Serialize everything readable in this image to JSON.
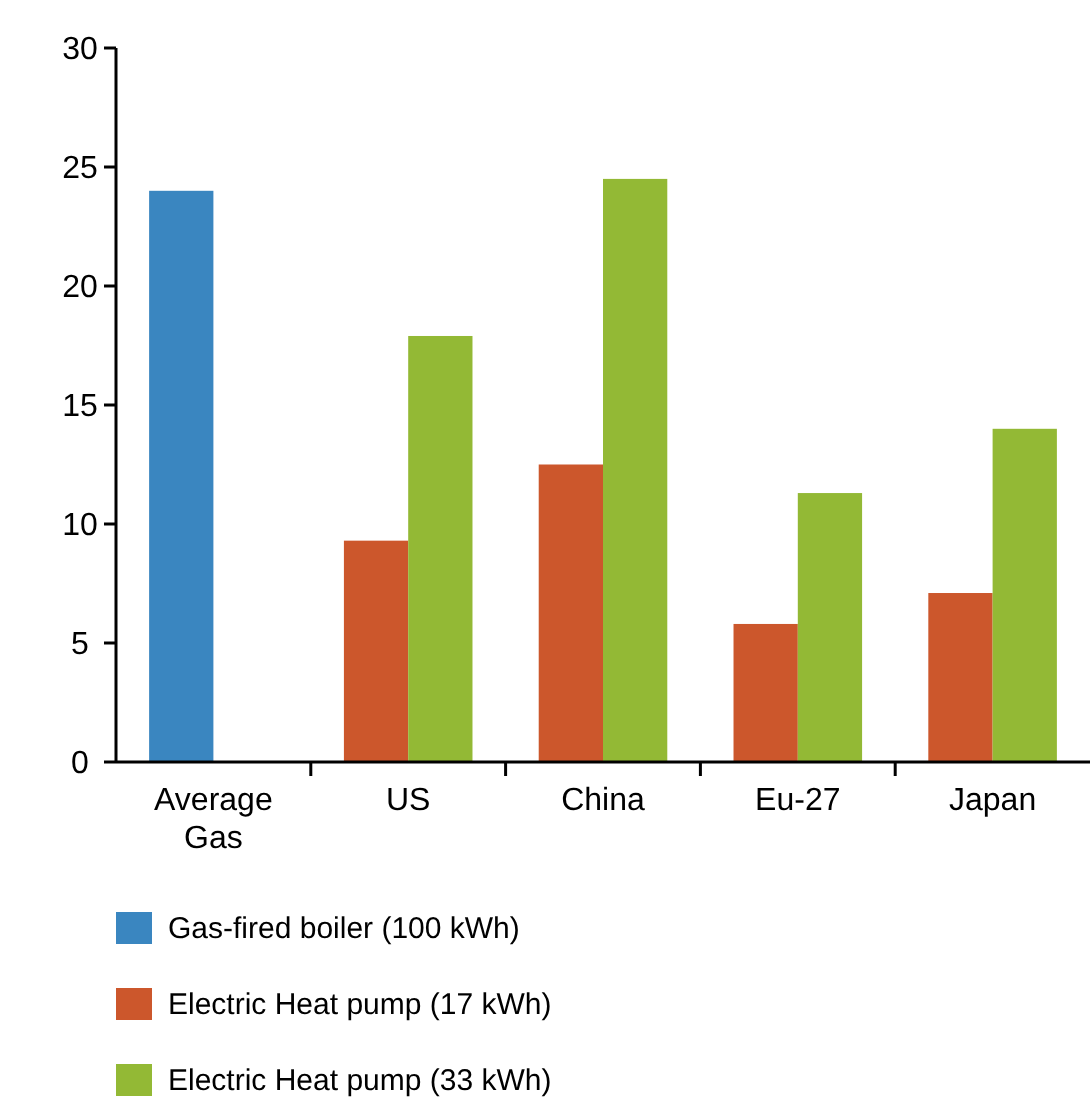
{
  "chart_data": {
    "type": "bar",
    "categories": [
      "Average Gas",
      "US",
      "China",
      "Eu-27",
      "Japan"
    ],
    "series": [
      {
        "name": "Gas-fired boiler (100 kWh)",
        "color": "#3a86c0",
        "values": [
          24,
          null,
          null,
          null,
          null
        ]
      },
      {
        "name": "Electric Heat pump (17 kWh)",
        "color": "#cc572c",
        "values": [
          null,
          9.3,
          12.5,
          5.8,
          7.1
        ]
      },
      {
        "name": "Electric Heat pump (33 kWh)",
        "color": "#93b935",
        "values": [
          null,
          17.9,
          24.5,
          11.3,
          14.0
        ]
      }
    ],
    "ylim": [
      0,
      30
    ],
    "yticks": [
      0,
      5,
      10,
      15,
      20,
      25,
      30
    ],
    "grid": false,
    "legend": "bottom"
  }
}
